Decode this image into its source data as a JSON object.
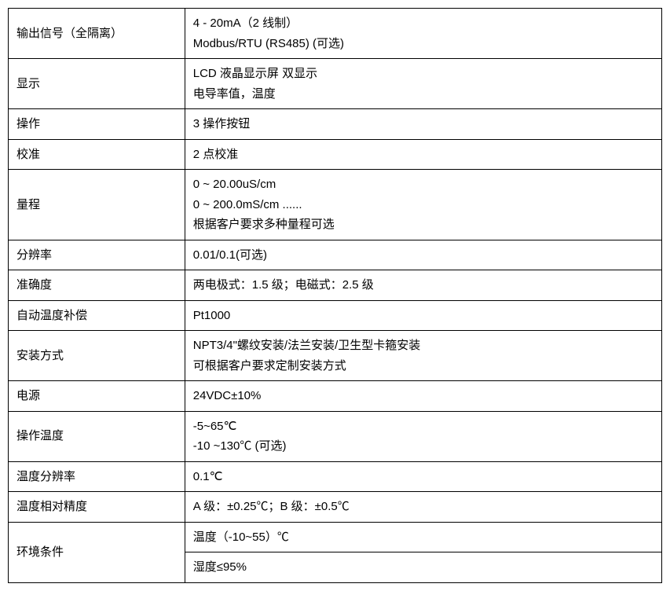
{
  "table": {
    "type": "table",
    "border_color": "#000000",
    "background_color": "#ffffff",
    "text_color": "#000000",
    "font_size": 15,
    "label_col_width": 225,
    "value_col_width": 608,
    "rows": [
      {
        "label": "输出信号（全隔离）",
        "value": "4 - 20mA（2 线制）\nModbus/RTU (RS485) (可选)",
        "multiline": true
      },
      {
        "label": "显示",
        "value": "LCD 液晶显示屏 双显示\n电导率值，温度",
        "multiline": true
      },
      {
        "label": "操作",
        "value": "3 操作按钮"
      },
      {
        "label": "校准",
        "value": "2 点校准"
      },
      {
        "label": "量程",
        "value": "0 ~ 20.00uS/cm\n0 ~ 200.0mS/cm ......\n根据客户要求多种量程可选",
        "multiline": true
      },
      {
        "label": "分辨率",
        "value": "0.01/0.1(可选)"
      },
      {
        "label": "准确度",
        "value": "两电极式：1.5 级；电磁式：2.5 级"
      },
      {
        "label": "自动温度补偿",
        "value": "Pt1000"
      },
      {
        "label": "安装方式",
        "value": "NPT3/4\"螺纹安装/法兰安装/卫生型卡箍安装\n可根据客户要求定制安装方式",
        "multiline": true
      },
      {
        "label": "电源",
        "value": "24VDC±10%"
      },
      {
        "label": "操作温度",
        "value": "-5~65℃\n-10 ~130℃ (可选)",
        "multiline": true
      },
      {
        "label": "温度分辨率",
        "value": "0.1℃"
      },
      {
        "label": "温度相对精度",
        "value": "A 级：±0.25℃；B 级：±0.5℃"
      },
      {
        "label": "环境条件",
        "value_rows": [
          "温度（-10~55）℃",
          "湿度≤95%"
        ],
        "split_value": true
      }
    ]
  }
}
